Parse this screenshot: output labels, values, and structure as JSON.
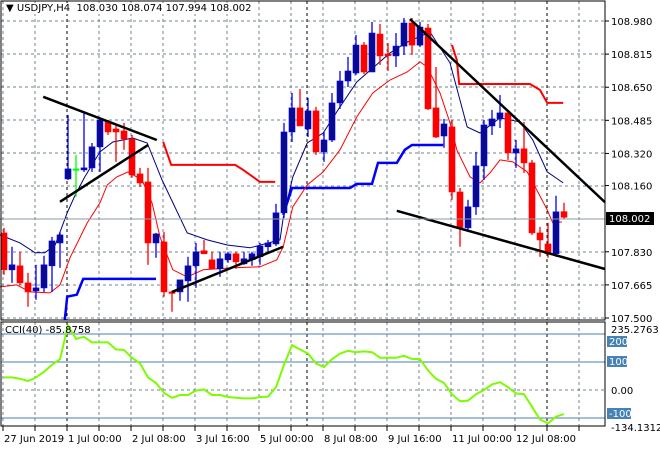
{
  "header": {
    "symbol": "USDJPY,H4",
    "open": "108.030",
    "high": "108.074",
    "low": "107.994",
    "close": "108.002"
  },
  "colors": {
    "bull_body": "#0a0a8c",
    "bull_wick": "#0000ff",
    "bear": "#ff0000",
    "doji": "#00ff00",
    "ma_fast": "#000080",
    "ma_slow": "#ff0000",
    "step_blue": "#0000ff",
    "step_red": "#ff0000",
    "trendline": "#000000",
    "cci": "#7cfc00",
    "cci_level": "#4682b4",
    "grid": "#708090"
  },
  "chart_data": [
    {
      "type": "candlestick",
      "title": "USDJPY,H4",
      "ylim": [
        107.5,
        108.98
      ],
      "y_ticks": [
        "108.980",
        "108.815",
        "108.650",
        "108.485",
        "108.320",
        "108.160",
        "107.830",
        "107.665",
        "107.500"
      ],
      "current_price": "108.002",
      "x_tick_labels": [
        "27 Jun 2019",
        "1 Jul 00:00",
        "2 Jul 08:00",
        "3 Jul 16:00",
        "5 Jul 00:00",
        "8 Jul 08:00",
        "9 Jul 16:00",
        "11 Jul 00:00",
        "12 Jul 08:00"
      ],
      "grid": true,
      "candles_ohlc": [
        [
          107.924,
          107.949,
          107.715,
          107.74
        ],
        [
          107.74,
          107.855,
          107.675,
          107.765
        ],
        [
          107.76,
          107.83,
          107.665,
          107.675
        ],
        [
          107.675,
          107.725,
          107.556,
          107.63
        ],
        [
          107.635,
          107.765,
          107.591,
          107.65
        ],
        [
          107.65,
          107.81,
          107.63,
          107.765
        ],
        [
          107.76,
          107.904,
          107.63,
          107.884
        ],
        [
          107.874,
          107.929,
          107.75,
          107.914
        ],
        [
          108.193,
          108.512,
          108.188,
          108.243
        ],
        [
          108.243,
          108.313,
          108.104,
          108.243
        ],
        [
          108.238,
          108.527,
          108.228,
          108.248
        ],
        [
          108.248,
          108.372,
          108.228,
          108.353
        ],
        [
          108.353,
          108.497,
          108.228,
          108.487
        ],
        [
          108.477,
          108.487,
          108.412,
          108.427
        ],
        [
          108.442,
          108.462,
          108.278,
          108.427
        ],
        [
          108.432,
          108.472,
          108.338,
          108.392
        ],
        [
          108.392,
          108.412,
          108.2,
          108.213
        ],
        [
          108.218,
          108.248,
          108.153,
          108.173
        ],
        [
          108.178,
          108.248,
          107.765,
          107.874
        ],
        [
          107.874,
          107.924,
          107.8,
          107.919
        ],
        [
          107.879,
          107.929,
          107.606,
          107.63
        ],
        [
          107.63,
          107.635,
          107.531,
          107.625
        ],
        [
          107.63,
          107.69,
          107.586,
          107.69
        ],
        [
          107.685,
          107.805,
          107.581,
          107.76
        ],
        [
          107.76,
          107.874,
          107.65,
          107.83
        ],
        [
          107.835,
          107.889,
          107.82,
          107.82
        ],
        [
          107.79,
          107.83,
          107.745,
          107.745
        ],
        [
          107.745,
          107.83,
          107.705,
          107.795
        ],
        [
          107.79,
          107.83,
          107.775,
          107.82
        ],
        [
          107.82,
          107.83,
          107.745,
          107.78
        ],
        [
          107.77,
          107.83,
          107.765,
          107.795
        ],
        [
          107.79,
          107.83,
          107.76,
          107.82
        ],
        [
          107.805,
          107.874,
          107.765,
          107.859
        ],
        [
          107.855,
          107.889,
          107.825,
          107.874
        ],
        [
          107.869,
          108.069,
          107.859,
          108.024
        ],
        [
          108.024,
          108.472,
          107.999,
          108.427
        ],
        [
          108.427,
          108.621,
          108.377,
          108.547
        ],
        [
          108.547,
          108.641,
          108.457,
          108.457
        ],
        [
          108.442,
          108.597,
          108.402,
          108.532
        ],
        [
          108.532,
          108.552,
          108.313,
          108.328
        ],
        [
          108.328,
          108.427,
          108.278,
          108.387
        ],
        [
          108.387,
          108.621,
          108.377,
          108.572
        ],
        [
          108.572,
          108.731,
          108.542,
          108.681
        ],
        [
          108.681,
          108.801,
          108.651,
          108.731
        ],
        [
          108.721,
          108.91,
          108.711,
          108.86
        ],
        [
          108.86,
          108.875,
          108.716,
          108.726
        ],
        [
          108.726,
          108.975,
          108.726,
          108.92
        ],
        [
          108.915,
          108.965,
          108.761,
          108.806
        ],
        [
          108.815,
          108.87,
          108.731,
          108.811
        ],
        [
          108.806,
          108.92,
          108.751,
          108.855
        ],
        [
          108.855,
          108.995,
          108.811,
          108.97
        ],
        [
          108.97,
          108.995,
          108.811,
          108.86
        ],
        [
          108.86,
          108.975,
          108.85,
          108.95
        ],
        [
          108.945,
          108.965,
          108.537,
          108.542
        ],
        [
          108.547,
          108.751,
          108.397,
          108.402
        ],
        [
          108.407,
          108.492,
          108.348,
          108.467
        ],
        [
          108.452,
          108.487,
          108.089,
          108.128
        ],
        [
          108.128,
          108.148,
          107.855,
          107.949
        ],
        [
          107.949,
          108.089,
          107.929,
          108.054
        ],
        [
          108.054,
          108.328,
          108.014,
          108.258
        ],
        [
          108.258,
          108.487,
          108.188,
          108.462
        ],
        [
          108.457,
          108.537,
          108.412,
          108.492
        ],
        [
          108.492,
          108.611,
          108.447,
          108.522
        ],
        [
          108.522,
          108.527,
          108.288,
          108.323
        ],
        [
          108.323,
          108.387,
          108.248,
          108.343
        ],
        [
          108.343,
          108.477,
          108.223,
          108.273
        ],
        [
          108.273,
          108.288,
          107.914,
          107.924
        ],
        [
          107.924,
          107.954,
          107.805,
          107.889
        ],
        [
          107.869,
          107.974,
          107.8,
          107.82
        ],
        [
          107.82,
          108.109,
          107.805,
          108.029
        ],
        [
          108.03,
          108.074,
          107.994,
          108.002
        ]
      ],
      "ma_fast_points": [
        [
          -0.5,
          107.914
        ],
        [
          2,
          107.874
        ],
        [
          3.9,
          107.825
        ],
        [
          5.1,
          107.825
        ],
        [
          6.4,
          107.864
        ],
        [
          7.9,
          108.024
        ],
        [
          8.9,
          108.113
        ],
        [
          10.1,
          108.203
        ],
        [
          12,
          108.328
        ],
        [
          13.6,
          108.377
        ],
        [
          16.1,
          108.397
        ],
        [
          17.9,
          108.372
        ],
        [
          19.75,
          108.188
        ],
        [
          22.9,
          107.924
        ],
        [
          25.4,
          107.889
        ],
        [
          27.9,
          107.864
        ],
        [
          30.75,
          107.85
        ],
        [
          34.5,
          107.889
        ],
        [
          34.9,
          107.999
        ],
        [
          36.1,
          108.203
        ],
        [
          37.9,
          108.372
        ],
        [
          39.9,
          108.422
        ],
        [
          42,
          108.552
        ],
        [
          44.1,
          108.676
        ],
        [
          46.1,
          108.746
        ],
        [
          48.25,
          108.821
        ],
        [
          50.4,
          108.875
        ],
        [
          53.25,
          108.925
        ],
        [
          55.75,
          108.771
        ],
        [
          57.9,
          108.452
        ],
        [
          59.5,
          108.422
        ],
        [
          62,
          108.497
        ],
        [
          64.5,
          108.477
        ],
        [
          66.1,
          108.387
        ],
        [
          67.9,
          108.228
        ],
        [
          69.9,
          108.173
        ]
      ],
      "ma_slow_points": [
        [
          -0.5,
          107.655
        ],
        [
          1.6,
          107.665
        ],
        [
          3.25,
          107.63
        ],
        [
          5.75,
          107.625
        ],
        [
          7,
          107.665
        ],
        [
          8.25,
          107.8
        ],
        [
          10.4,
          107.974
        ],
        [
          12,
          108.074
        ],
        [
          12.9,
          108.163
        ],
        [
          14.1,
          108.203
        ],
        [
          15.5,
          108.228
        ],
        [
          17.25,
          108.188
        ],
        [
          18.5,
          108.074
        ],
        [
          19.5,
          107.904
        ],
        [
          21.1,
          107.74
        ],
        [
          22.9,
          107.705
        ],
        [
          24.9,
          107.74
        ],
        [
          28.6,
          107.75
        ],
        [
          32,
          107.755
        ],
        [
          34.1,
          107.79
        ],
        [
          34.9,
          107.855
        ],
        [
          36.1,
          108.054
        ],
        [
          37.9,
          108.163
        ],
        [
          39.9,
          108.228
        ],
        [
          42,
          108.338
        ],
        [
          44.1,
          108.502
        ],
        [
          46.1,
          108.621
        ],
        [
          48.25,
          108.686
        ],
        [
          50.4,
          108.726
        ],
        [
          52,
          108.776
        ],
        [
          52.9,
          108.751
        ],
        [
          54.5,
          108.621
        ],
        [
          55.75,
          108.472
        ],
        [
          56.6,
          108.338
        ],
        [
          58.25,
          108.203
        ],
        [
          59.5,
          108.173
        ],
        [
          60.75,
          108.223
        ],
        [
          62,
          108.288
        ],
        [
          63.6,
          108.278
        ],
        [
          65.4,
          108.228
        ],
        [
          66.6,
          108.138
        ],
        [
          67.9,
          108.039
        ],
        [
          68.6,
          107.974
        ],
        [
          69.75,
          107.979
        ]
      ],
      "step_blue_segments": [
        [
          [
            7.6,
            107.491
          ],
          [
            7.9,
            107.606
          ],
          [
            9.1,
            107.616
          ],
          [
            9.9,
            107.695
          ],
          [
            19,
            107.695
          ]
        ],
        [
          [
            34.9,
            108.014
          ],
          [
            36,
            108.148
          ],
          [
            43.25,
            108.148
          ],
          [
            44.1,
            108.168
          ],
          [
            46,
            108.168
          ],
          [
            46.75,
            108.273
          ],
          [
            49.1,
            108.273
          ],
          [
            50.1,
            108.338
          ],
          [
            51,
            108.362
          ],
          [
            54.9,
            108.362
          ]
        ]
      ],
      "step_red_segments": [
        [
          [
            19.9,
            108.377
          ],
          [
            20.9,
            108.263
          ],
          [
            28.9,
            108.263
          ],
          [
            29.9,
            108.238
          ],
          [
            32,
            108.178
          ],
          [
            33.9,
            108.178
          ]
        ],
        [
          [
            56,
            108.86
          ],
          [
            56.6,
            108.786
          ],
          [
            56.9,
            108.666
          ],
          [
            65.75,
            108.666
          ],
          [
            67,
            108.636
          ],
          [
            67.9,
            108.572
          ],
          [
            69.9,
            108.572
          ]
        ]
      ],
      "trendlines": [
        [
          [
            4.9,
            108.602
          ],
          [
            19.1,
            108.387
          ]
        ],
        [
          [
            7,
            108.079
          ],
          [
            18,
            108.362
          ]
        ],
        [
          [
            21,
            107.63
          ],
          [
            34.9,
            107.855
          ]
        ],
        [
          [
            50.75,
            108.99
          ],
          [
            76.4,
            108.029
          ]
        ],
        [
          [
            49.1,
            108.034
          ],
          [
            76.4,
            107.73
          ]
        ]
      ]
    },
    {
      "type": "line",
      "title": "CCI(40)",
      "last_value": "-85.8758",
      "scale_max": "235.2763",
      "scale_min": "-134.1312",
      "levels": [
        "200",
        "100",
        "0.00",
        "-100"
      ],
      "values": [
        45,
        45,
        40,
        32,
        45,
        65,
        90,
        110,
        230,
        182,
        190,
        170,
        170,
        170,
        145,
        143,
        115,
        95,
        45,
        25,
        -10,
        -28,
        -18,
        -18,
        -2,
        2,
        -18,
        -18,
        -25,
        -28,
        -30,
        -30,
        -25,
        -24,
        10,
        90,
        160,
        145,
        130,
        95,
        82,
        110,
        130,
        140,
        135,
        138,
        135,
        115,
        115,
        115,
        122,
        111,
        110,
        70,
        40,
        25,
        -15,
        -40,
        -38,
        -15,
        0,
        20,
        28,
        10,
        -12,
        -15,
        -60,
        -105,
        -120,
        -95,
        -86
      ]
    }
  ]
}
